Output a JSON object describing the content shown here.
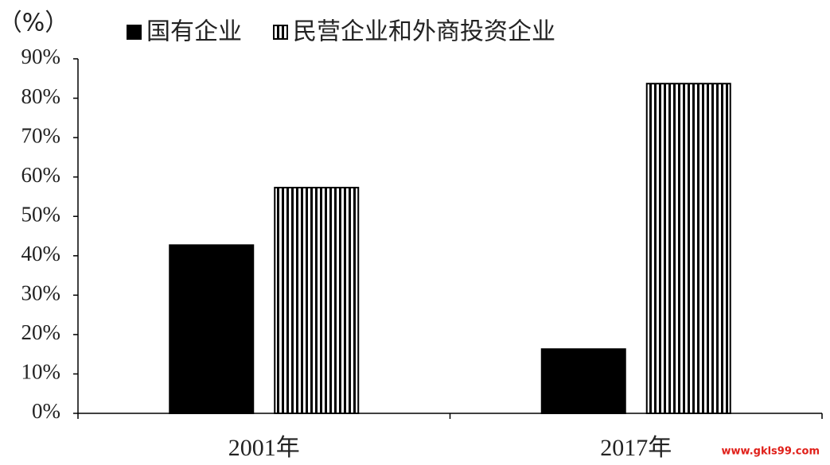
{
  "chart_data": {
    "type": "bar",
    "y_label": "（%）",
    "categories": [
      "2001年",
      "2017年"
    ],
    "series": [
      {
        "name": "国有企业",
        "color": "#000000",
        "hatch": "none",
        "values": [
          42.7,
          16.3
        ]
      },
      {
        "name": "民营企业和外商投资企业",
        "color": "#000000",
        "hatch": "vertical",
        "values": [
          57.3,
          83.7
        ]
      }
    ],
    "ylim": [
      0,
      90
    ],
    "yticks": [
      {
        "value": 0,
        "label": "0%"
      },
      {
        "value": 10,
        "label": "10%"
      },
      {
        "value": 20,
        "label": "20%"
      },
      {
        "value": 30,
        "label": "30%"
      },
      {
        "value": 40,
        "label": "40%"
      },
      {
        "value": 50,
        "label": "50%"
      },
      {
        "value": 60,
        "label": "60%"
      },
      {
        "value": 70,
        "label": "70%"
      },
      {
        "value": 80,
        "label": "80%"
      },
      {
        "value": 90,
        "label": "90%"
      }
    ],
    "grid": false,
    "legend": "top",
    "watermark": "www.gkls99.com"
  }
}
